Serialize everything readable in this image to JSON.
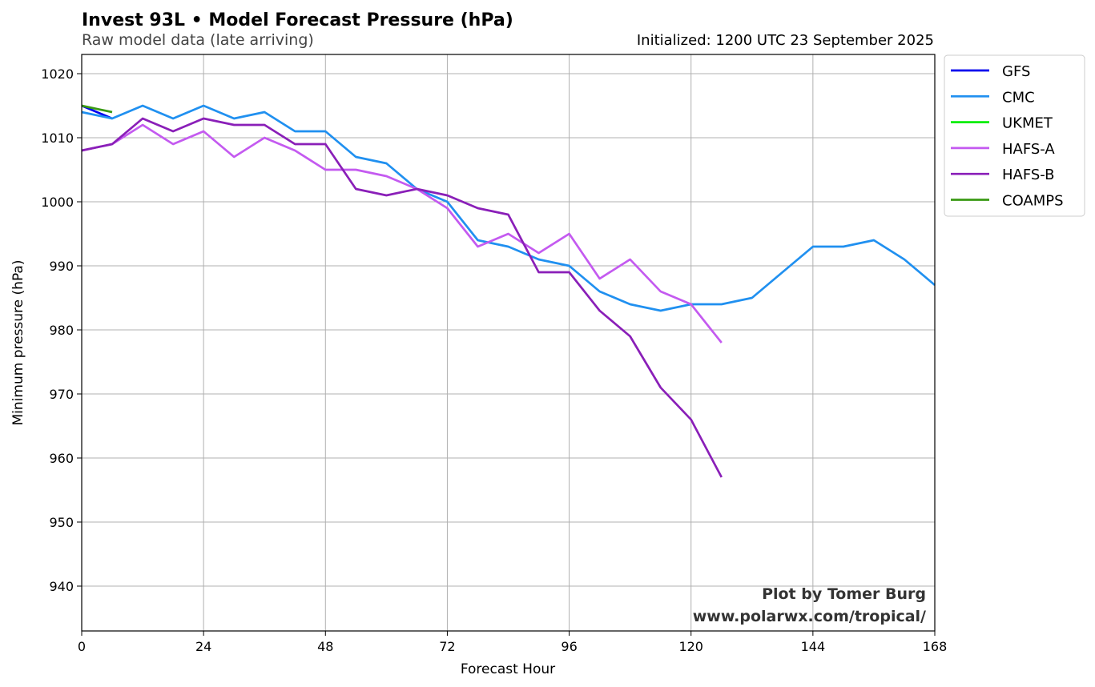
{
  "chart_data": {
    "type": "line",
    "title": "Invest 93L • Model Forecast Pressure (hPa)",
    "subtitle": "Raw model data (late arriving)",
    "initialized": "Initialized: 1200 UTC 23 September 2025",
    "xlabel": "Forecast Hour",
    "ylabel": "Minimum pressure (hPa)",
    "xlim": [
      0,
      168
    ],
    "ylim": [
      933,
      1023
    ],
    "xticks": [
      0,
      24,
      48,
      72,
      96,
      120,
      144,
      168
    ],
    "yticks": [
      940,
      950,
      960,
      970,
      980,
      990,
      1000,
      1010,
      1020
    ],
    "grid": true,
    "legend_position": "outside-top-right",
    "credit_line1": "Plot by Tomer Burg",
    "credit_line2": "www.polarwx.com/tropical/",
    "series": [
      {
        "name": "GFS",
        "color": "#0000ee",
        "x": [
          0,
          6
        ],
        "y": [
          1015,
          1013
        ]
      },
      {
        "name": "CMC",
        "color": "#2090f0",
        "x": [
          0,
          6,
          12,
          18,
          24,
          30,
          36,
          42,
          48,
          54,
          60,
          66,
          72,
          78,
          84,
          90,
          96,
          102,
          108,
          114,
          120,
          126,
          132,
          138,
          144,
          150,
          156,
          162,
          168
        ],
        "y": [
          1014,
          1013,
          1015,
          1013,
          1015,
          1013,
          1014,
          1011,
          1011,
          1007,
          1006,
          1002,
          1000,
          994,
          993,
          991,
          990,
          986,
          984,
          983,
          984,
          984,
          985,
          989,
          993,
          993,
          994,
          991,
          987
        ]
      },
      {
        "name": "UKMET",
        "color": "#00ee00",
        "x": [],
        "y": []
      },
      {
        "name": "HAFS-A",
        "color": "#c45af0",
        "x": [
          0,
          6,
          12,
          18,
          24,
          30,
          36,
          42,
          48,
          54,
          60,
          66,
          72,
          78,
          84,
          90,
          96,
          102,
          108,
          114,
          120,
          126
        ],
        "y": [
          1008,
          1009,
          1012,
          1009,
          1011,
          1007,
          1010,
          1008,
          1005,
          1005,
          1004,
          1002,
          999,
          993,
          995,
          992,
          995,
          988,
          991,
          986,
          984,
          978
        ]
      },
      {
        "name": "HAFS-B",
        "color": "#8a1fb8",
        "x": [
          0,
          6,
          12,
          18,
          24,
          30,
          36,
          42,
          48,
          54,
          60,
          66,
          72,
          78,
          84,
          90,
          96,
          102,
          108,
          114,
          120,
          126
        ],
        "y": [
          1008,
          1009,
          1013,
          1011,
          1013,
          1012,
          1012,
          1009,
          1009,
          1002,
          1001,
          1002,
          1001,
          999,
          998,
          989,
          989,
          983,
          979,
          971,
          966,
          957
        ]
      },
      {
        "name": "COAMPS",
        "color": "#3a9a14",
        "x": [
          0,
          6
        ],
        "y": [
          1015,
          1014
        ]
      }
    ]
  }
}
